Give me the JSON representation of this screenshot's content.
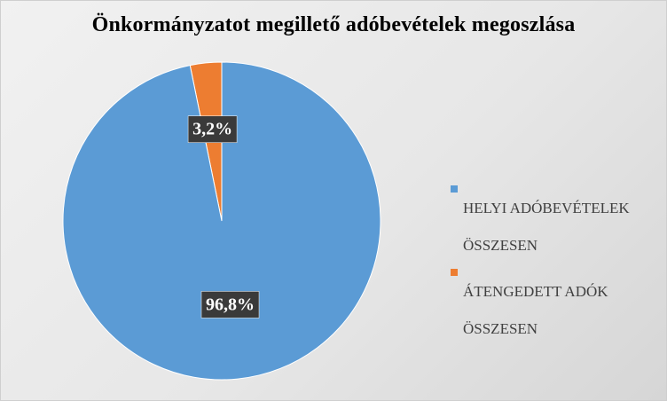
{
  "chart_data": {
    "type": "pie",
    "title": "Önkormányzatot megillető adóbevételek megoszlása",
    "slices": [
      {
        "label": "HELYI ADÓBEVÉTELEK ÖSSZESEN",
        "value": 96.8,
        "display": "96,8%",
        "color": "#5b9bd5"
      },
      {
        "label": "ÁTENGEDETT ADÓK ÖSSZESEN",
        "value": 3.2,
        "display": "3,2%",
        "color": "#ed7d31"
      }
    ],
    "legend_position": "right",
    "legend": [
      {
        "label_line1": "HELYI ADÓBEVÉTELEK",
        "label_line2": "ÖSSZESEN",
        "color": "#5b9bd5"
      },
      {
        "label_line1": "ÁTENGEDETT ADÓK",
        "label_line2": "ÖSSZESEN",
        "color": "#ed7d31"
      }
    ]
  }
}
